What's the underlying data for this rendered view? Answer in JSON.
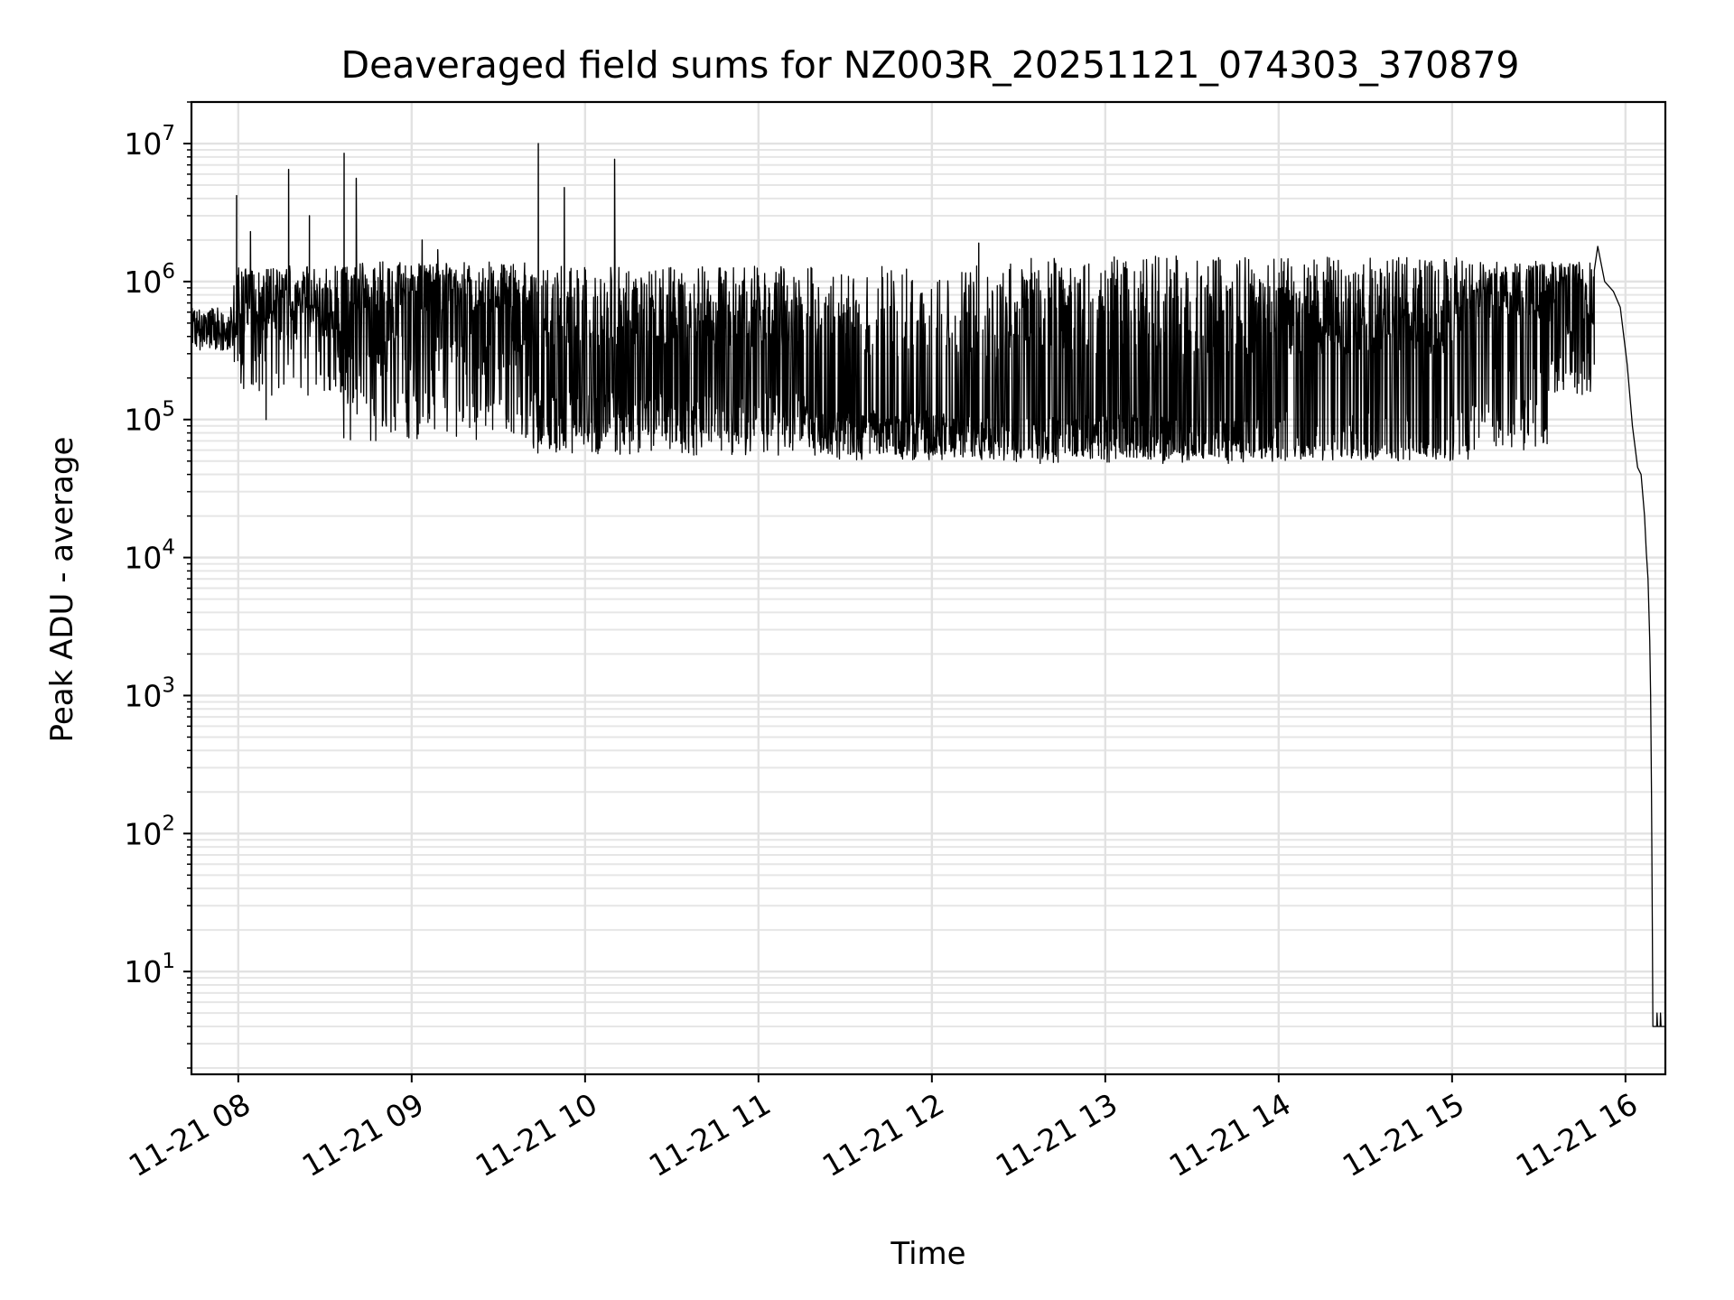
{
  "chart_data": {
    "type": "line",
    "title": "Deaveraged field sums for NZ003R_20251121_074303_370879",
    "xlabel": "Time",
    "ylabel": "Peak ADU - average",
    "yscale": "log",
    "grid": true,
    "xlim_hours": [
      7.73,
      16.23
    ],
    "ylim": [
      1.8,
      20000000
    ],
    "x_ticks": [
      {
        "hour": 8,
        "label": "11-21 08"
      },
      {
        "hour": 9,
        "label": "11-21 09"
      },
      {
        "hour": 10,
        "label": "11-21 10"
      },
      {
        "hour": 11,
        "label": "11-21 11"
      },
      {
        "hour": 12,
        "label": "11-21 12"
      },
      {
        "hour": 13,
        "label": "11-21 13"
      },
      {
        "hour": 14,
        "label": "11-21 14"
      },
      {
        "hour": 15,
        "label": "11-21 15"
      },
      {
        "hour": 16,
        "label": "11-21 16"
      }
    ],
    "y_ticks": [
      {
        "value": 10,
        "base": "10",
        "exp": "1"
      },
      {
        "value": 100,
        "base": "10",
        "exp": "2"
      },
      {
        "value": 1000,
        "base": "10",
        "exp": "3"
      },
      {
        "value": 10000,
        "base": "10",
        "exp": "4"
      },
      {
        "value": 100000,
        "base": "10",
        "exp": "5"
      },
      {
        "value": 1000000,
        "base": "10",
        "exp": "6"
      },
      {
        "value": 10000000,
        "base": "10",
        "exp": "7"
      }
    ],
    "series": [
      {
        "name": "Peak ADU - average",
        "color": "#000000",
        "segments_hours": [
          {
            "start": 7.73,
            "end": 7.97,
            "low": 350000,
            "high": 650000,
            "base": 450000,
            "spikes_per_hour": 40
          },
          {
            "start": 7.97,
            "end": 8.6,
            "low": 150000,
            "high": 1300000,
            "base": 550000,
            "spikes_per_hour": 180
          },
          {
            "start": 8.6,
            "end": 9.7,
            "low": 70000,
            "high": 1400000,
            "base": 300000,
            "spikes_per_hour": 260
          },
          {
            "start": 9.7,
            "end": 11.3,
            "low": 55000,
            "high": 1300000,
            "base": 110000,
            "spikes_per_hour": 230
          },
          {
            "start": 11.3,
            "end": 12.4,
            "low": 50000,
            "high": 1300000,
            "base": 80000,
            "spikes_per_hour": 140
          },
          {
            "start": 12.4,
            "end": 14.0,
            "low": 48000,
            "high": 1550000,
            "base": 75000,
            "spikes_per_hour": 210
          },
          {
            "start": 14.0,
            "end": 15.1,
            "low": 50000,
            "high": 1500000,
            "base": 80000,
            "spikes_per_hour": 280
          },
          {
            "start": 15.1,
            "end": 15.55,
            "low": 60000,
            "high": 1400000,
            "base": 250000,
            "spikes_per_hour": 300
          },
          {
            "start": 15.55,
            "end": 15.82,
            "low": 150000,
            "high": 1400000,
            "base": 600000,
            "spikes_per_hour": 260
          }
        ],
        "spikes": [
          {
            "hour": 7.99,
            "value": 4200000
          },
          {
            "hour": 8.07,
            "value": 2300000
          },
          {
            "hour": 8.16,
            "value": 100000
          },
          {
            "hour": 8.29,
            "value": 6500000
          },
          {
            "hour": 8.41,
            "value": 3000000
          },
          {
            "hour": 8.61,
            "value": 8500000
          },
          {
            "hour": 8.68,
            "value": 5600000
          },
          {
            "hour": 9.06,
            "value": 2000000
          },
          {
            "hour": 9.15,
            "value": 1700000
          },
          {
            "hour": 9.73,
            "value": 10000000
          },
          {
            "hour": 9.88,
            "value": 4800000
          },
          {
            "hour": 10.17,
            "value": 7700000
          },
          {
            "hour": 12.27,
            "value": 1900000
          }
        ],
        "tail_points": [
          {
            "hour": 15.82,
            "value": 1200000
          },
          {
            "hour": 15.84,
            "value": 1800000
          },
          {
            "hour": 15.88,
            "value": 1000000
          },
          {
            "hour": 15.93,
            "value": 850000
          },
          {
            "hour": 15.97,
            "value": 650000
          },
          {
            "hour": 16.01,
            "value": 250000
          },
          {
            "hour": 16.04,
            "value": 90000
          },
          {
            "hour": 16.07,
            "value": 45000
          },
          {
            "hour": 16.09,
            "value": 40000
          },
          {
            "hour": 16.11,
            "value": 20000
          },
          {
            "hour": 16.12,
            "value": 11000
          },
          {
            "hour": 16.13,
            "value": 7000
          },
          {
            "hour": 16.14,
            "value": 2500
          },
          {
            "hour": 16.145,
            "value": 1000
          },
          {
            "hour": 16.15,
            "value": 200
          },
          {
            "hour": 16.155,
            "value": 20
          },
          {
            "hour": 16.158,
            "value": 4
          },
          {
            "hour": 16.18,
            "value": 4
          },
          {
            "hour": 16.182,
            "value": 5
          },
          {
            "hour": 16.185,
            "value": 4
          },
          {
            "hour": 16.2,
            "value": 4
          },
          {
            "hour": 16.202,
            "value": 5
          },
          {
            "hour": 16.205,
            "value": 4
          },
          {
            "hour": 16.23,
            "value": 4
          }
        ]
      }
    ]
  }
}
